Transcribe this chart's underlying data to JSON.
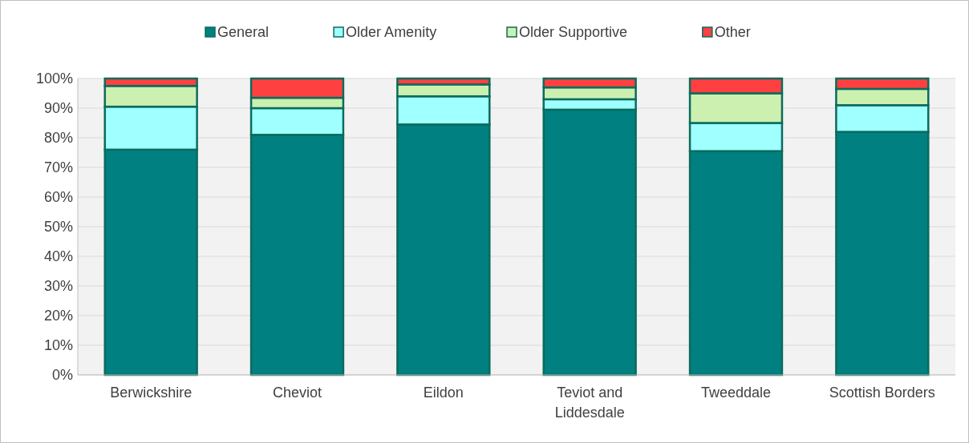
{
  "chart_data": {
    "type": "bar",
    "stacked": true,
    "categories": [
      "Berwickshire",
      "Cheviot",
      "Eildon",
      "Teviot and Liddesdale",
      "Tweeddale",
      "Scottish Borders"
    ],
    "series": [
      {
        "name": "General",
        "color": "#008080",
        "values": [
          76,
          81,
          84.5,
          89.5,
          75.5,
          82
        ]
      },
      {
        "name": "Older Amenity",
        "color": "#a0ffff",
        "values": [
          14.5,
          9,
          9.5,
          3.5,
          9.5,
          9
        ]
      },
      {
        "name": "Older Supportive",
        "color": "#ccf0b0",
        "values": [
          7,
          3.5,
          4,
          4,
          10,
          5.5
        ]
      },
      {
        "name": "Other",
        "color": "#ff4040",
        "values": [
          2.5,
          6.5,
          2,
          3,
          5,
          3.5
        ]
      }
    ],
    "ylim": [
      0,
      100
    ],
    "yticks": [
      {
        "value": 0,
        "label": "0%"
      },
      {
        "value": 10,
        "label": "10%"
      },
      {
        "value": 20,
        "label": "20%"
      },
      {
        "value": 30,
        "label": "30%"
      },
      {
        "value": 40,
        "label": "40%"
      },
      {
        "value": 50,
        "label": "50%"
      },
      {
        "value": 60,
        "label": "60%"
      },
      {
        "value": 70,
        "label": "70%"
      },
      {
        "value": 80,
        "label": "80%"
      },
      {
        "value": 90,
        "label": "90%"
      },
      {
        "value": 100,
        "label": "100%"
      }
    ],
    "grid": "y",
    "legend": "top"
  }
}
